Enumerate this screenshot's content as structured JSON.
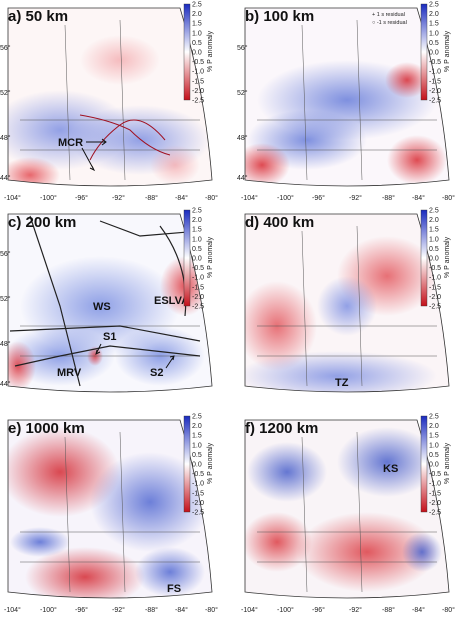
{
  "colorbar": {
    "title": "% P anomaly",
    "ticks": [
      "2.5",
      "2.0",
      "1.5",
      "1.0",
      "0.5",
      "0.0",
      "-0.5",
      "-1.0",
      "-1.5",
      "-2.0",
      "-2.5"
    ],
    "colors": {
      "max": "#1a2bbf",
      "mid": "#ffffff",
      "min": "#c4101a"
    }
  },
  "lat_ticks": [
    "56°",
    "52°",
    "48°",
    "44°"
  ],
  "lon_ticks_a": [
    "-104°",
    "-100°",
    "-96°",
    "-92°",
    "-88°",
    "-84°",
    "-80°"
  ],
  "lon_ticks_b": [
    "-104°",
    "-100°",
    "-96°",
    "-92°",
    "-88°",
    "-84°",
    "-80°"
  ],
  "lon_ticks_f": [
    "-104°",
    "-100°",
    "-96°",
    "-92°",
    "-88°",
    "-84°",
    "-80°"
  ],
  "panels": [
    {
      "id": "a",
      "title": "a) 50 km",
      "annotations": [
        {
          "label": "MCR"
        }
      ]
    },
    {
      "id": "b",
      "title": "b) 100 km",
      "legend": [
        "+ 1 s residual",
        "○ -1 s residual"
      ]
    },
    {
      "id": "c",
      "title": "c) 200 km",
      "annotations": [
        {
          "label": "WS"
        },
        {
          "label": "ESLVA"
        },
        {
          "label": "S1"
        },
        {
          "label": "MRV"
        },
        {
          "label": "S2"
        }
      ]
    },
    {
      "id": "d",
      "title": "d) 400 km",
      "annotations": [
        {
          "label": "TZ"
        }
      ]
    },
    {
      "id": "e",
      "title": "e) 1000 km",
      "annotations": [
        {
          "label": "FS"
        }
      ]
    },
    {
      "id": "f",
      "title": "f) 1200 km",
      "annotations": [
        {
          "label": "KS"
        }
      ]
    }
  ]
}
